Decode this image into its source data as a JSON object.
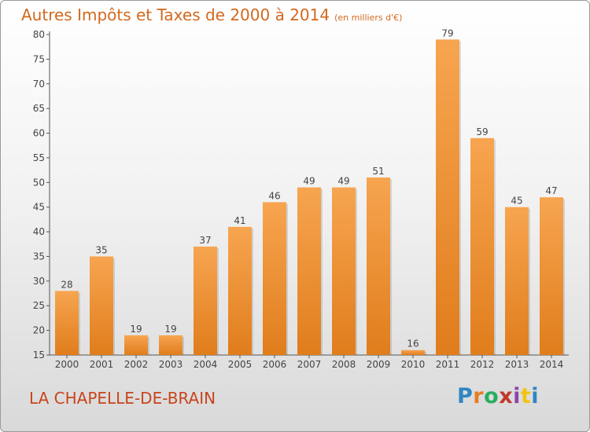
{
  "header": {
    "title": "Autres Impôts et Taxes de 2000 à 2014",
    "unit_note": "(en milliers d'€)"
  },
  "footer": {
    "commune": "LA CHAPELLE-DE-BRAIN",
    "logo_text": "Proxiti",
    "logo_letters": [
      "P",
      "r",
      "o",
      "x",
      "i",
      "t",
      "i"
    ],
    "logo_colors": [
      "#2e86c1",
      "#e67e22",
      "#27ae60",
      "#c0392b",
      "#8e44ad",
      "#f1c40f",
      "#2e86c1"
    ]
  },
  "colors": {
    "bar_light": "#f7a550",
    "bar_dark": "#e07d1c",
    "text_accent": "#d2691e"
  },
  "chart_data": {
    "type": "bar",
    "categories": [
      "2000",
      "2001",
      "2002",
      "2003",
      "2004",
      "2005",
      "2006",
      "2007",
      "2008",
      "2009",
      "2010",
      "2011",
      "2012",
      "2013",
      "2014"
    ],
    "values": [
      28,
      35,
      19,
      19,
      37,
      41,
      46,
      49,
      49,
      51,
      16,
      79,
      59,
      45,
      47
    ],
    "ylim": [
      15,
      80
    ],
    "yticks": [
      15,
      20,
      25,
      30,
      35,
      40,
      45,
      50,
      55,
      60,
      65,
      70,
      75,
      80
    ],
    "grid": false,
    "legend": "none"
  }
}
